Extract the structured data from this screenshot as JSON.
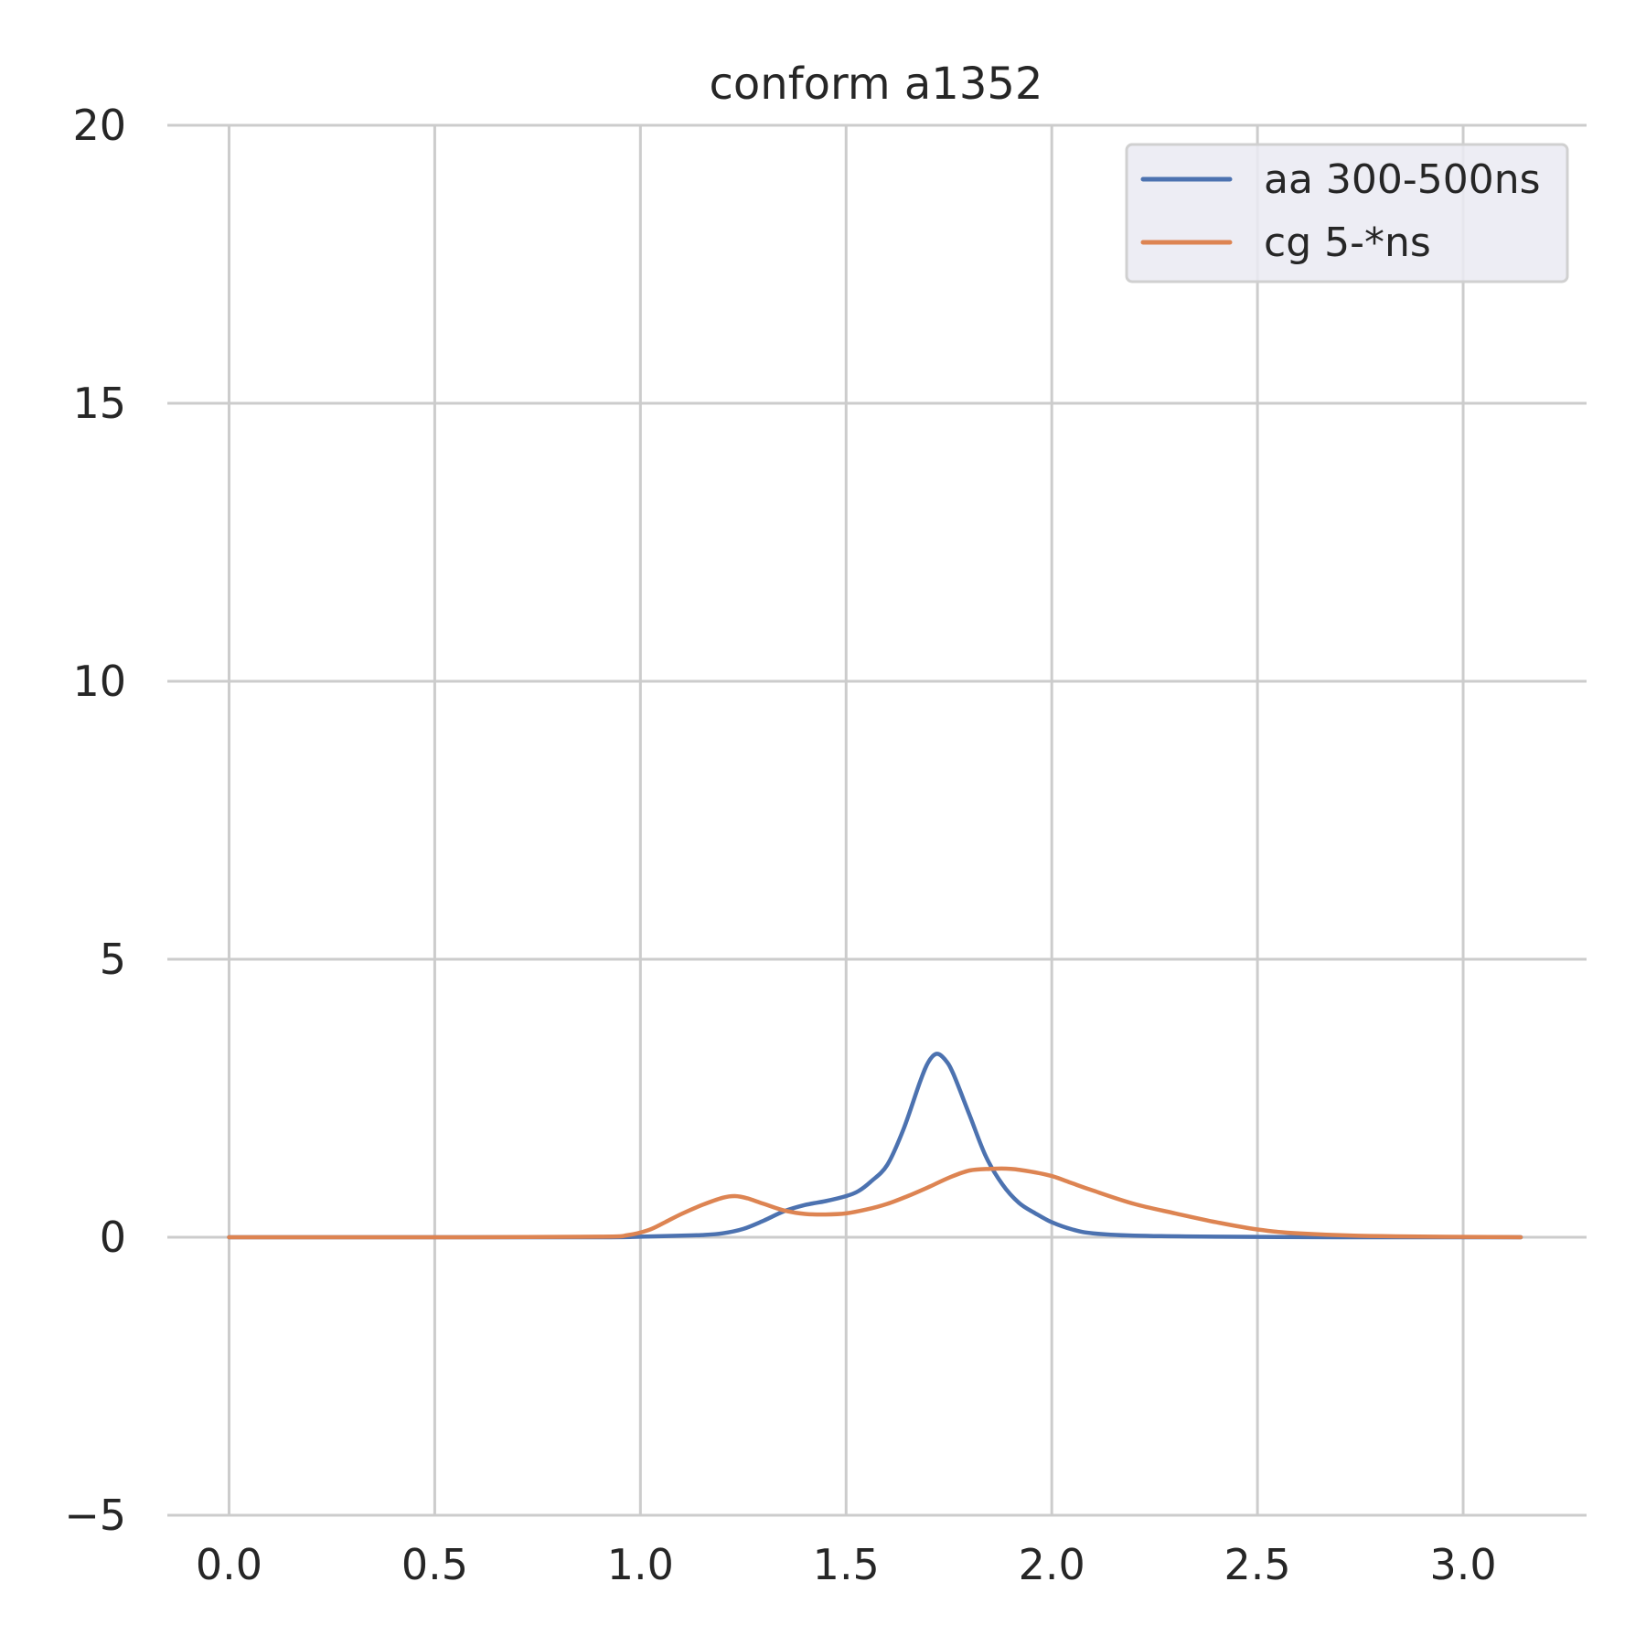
{
  "chart_data": {
    "type": "line",
    "title": "conform a1352",
    "xlabel": "",
    "ylabel": "",
    "xlim": [
      -0.15,
      3.3
    ],
    "ylim": [
      -5,
      20
    ],
    "xticks": [
      0.0,
      0.5,
      1.0,
      1.5,
      2.0,
      2.5,
      3.0
    ],
    "xtick_labels": [
      "0.0",
      "0.5",
      "1.0",
      "1.5",
      "2.0",
      "2.5",
      "3.0"
    ],
    "yticks": [
      -5,
      0,
      5,
      10,
      15,
      20
    ],
    "ytick_labels": [
      "−5",
      "0",
      "5",
      "10",
      "15",
      "20"
    ],
    "grid": true,
    "legend_position": "top-right",
    "series": [
      {
        "name": "aa 300-500ns",
        "color": "#4c72b0",
        "x": [
          0.0,
          0.5,
          0.9,
          1.0,
          1.1,
          1.15,
          1.2,
          1.25,
          1.3,
          1.35,
          1.4,
          1.45,
          1.5,
          1.53,
          1.56,
          1.6,
          1.64,
          1.68,
          1.7,
          1.72,
          1.74,
          1.76,
          1.8,
          1.84,
          1.88,
          1.92,
          1.96,
          2.0,
          2.05,
          2.1,
          2.2,
          2.4,
          2.7,
          3.14
        ],
        "y": [
          0.0,
          0.0,
          0.0,
          0.01,
          0.03,
          0.04,
          0.07,
          0.15,
          0.3,
          0.47,
          0.58,
          0.65,
          0.74,
          0.83,
          1.0,
          1.3,
          1.95,
          2.8,
          3.15,
          3.3,
          3.2,
          2.95,
          2.2,
          1.45,
          0.95,
          0.62,
          0.43,
          0.27,
          0.14,
          0.07,
          0.03,
          0.01,
          0.0,
          0.0
        ]
      },
      {
        "name": "cg 5-*ns",
        "color": "#dd8452",
        "x": [
          0.0,
          0.5,
          0.9,
          0.97,
          1.02,
          1.06,
          1.1,
          1.15,
          1.2,
          1.23,
          1.26,
          1.3,
          1.35,
          1.4,
          1.45,
          1.5,
          1.55,
          1.6,
          1.65,
          1.7,
          1.75,
          1.8,
          1.85,
          1.9,
          1.95,
          2.0,
          2.05,
          2.1,
          2.2,
          2.3,
          2.4,
          2.5,
          2.6,
          2.8,
          3.14
        ],
        "y": [
          0.0,
          0.0,
          0.01,
          0.04,
          0.13,
          0.27,
          0.42,
          0.58,
          0.71,
          0.74,
          0.7,
          0.6,
          0.48,
          0.42,
          0.41,
          0.43,
          0.5,
          0.6,
          0.74,
          0.9,
          1.07,
          1.2,
          1.23,
          1.23,
          1.18,
          1.1,
          0.97,
          0.84,
          0.6,
          0.43,
          0.27,
          0.14,
          0.07,
          0.02,
          0.0
        ]
      }
    ]
  }
}
